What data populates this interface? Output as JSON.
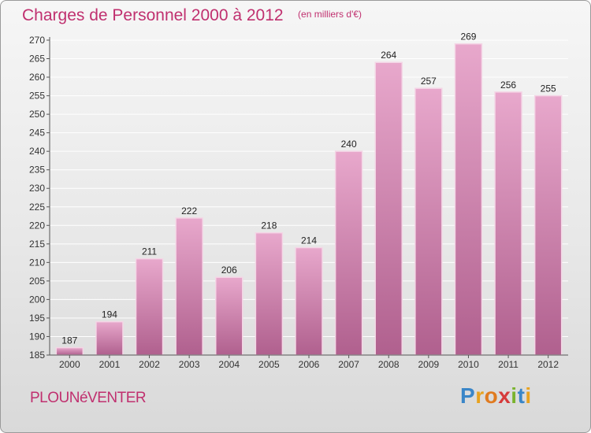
{
  "header": {
    "title": "Charges de Personnel 2000 à 2012",
    "subtitle": "(en milliers d'€)"
  },
  "footer": {
    "commune": "PLOUNéVENTER",
    "brand": "Proxiti",
    "brand_letters": [
      "P",
      "r",
      "o",
      "x",
      "i",
      "t",
      "i"
    ]
  },
  "colors": {
    "title": "#c0306f",
    "bar_top": "#e8a8cc",
    "bar_bottom": "#b0608e",
    "grid": "#ffffff"
  },
  "chart_data": {
    "type": "bar",
    "title": "Charges de Personnel 2000 à 2012",
    "subtitle": "(en milliers d'€)",
    "categories": [
      "2000",
      "2001",
      "2002",
      "2003",
      "2004",
      "2005",
      "2006",
      "2007",
      "2008",
      "2009",
      "2010",
      "2011",
      "2012"
    ],
    "values": [
      187,
      194,
      211,
      222,
      206,
      218,
      214,
      240,
      264,
      257,
      269,
      256,
      255
    ],
    "xlabel": "",
    "ylabel": "",
    "ylim": [
      185,
      270
    ],
    "yticks": [
      185,
      190,
      195,
      200,
      205,
      210,
      215,
      220,
      225,
      230,
      235,
      240,
      245,
      250,
      255,
      260,
      265,
      270
    ],
    "grid": true,
    "data_labels": true
  }
}
